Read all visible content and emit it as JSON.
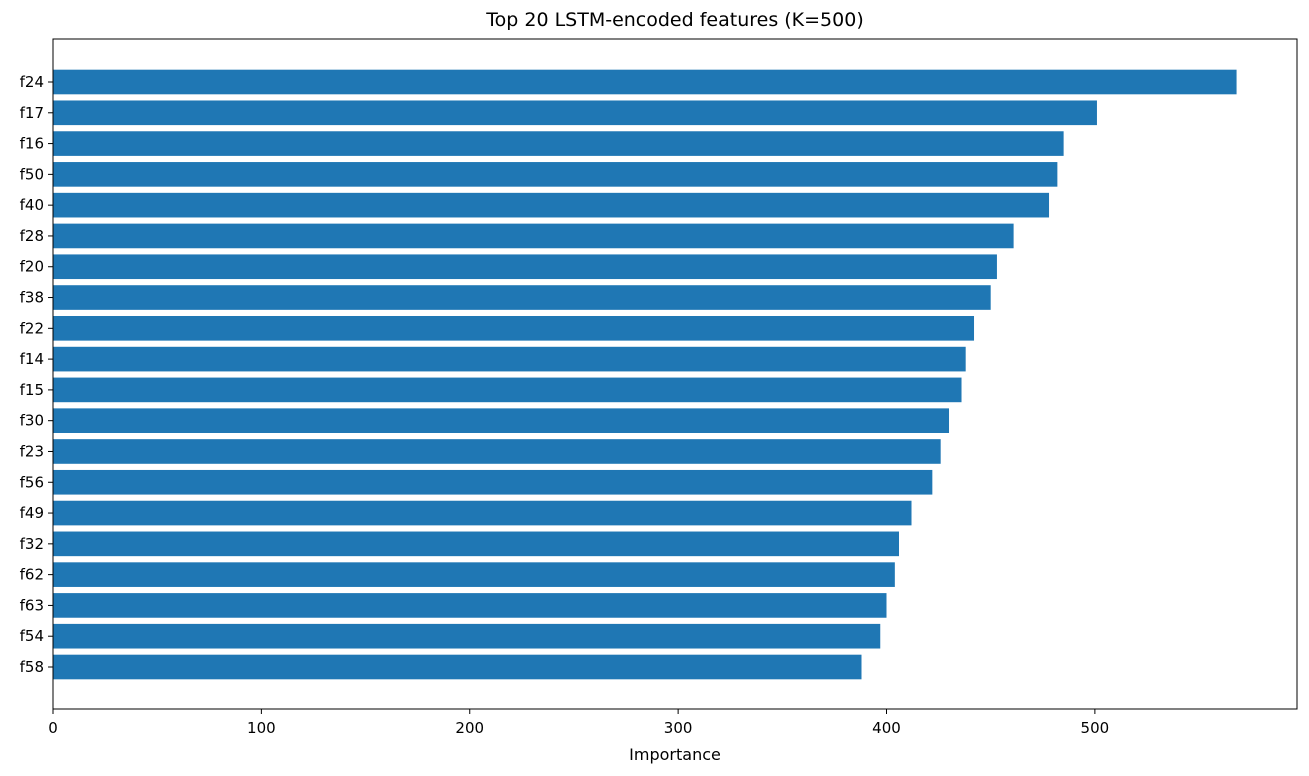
{
  "chart_data": {
    "type": "bar",
    "orientation": "horizontal",
    "title": "Top 20 LSTM-encoded features (K=500)",
    "xlabel": "Importance",
    "ylabel": "",
    "categories": [
      "f24",
      "f17",
      "f16",
      "f50",
      "f40",
      "f28",
      "f20",
      "f38",
      "f22",
      "f14",
      "f15",
      "f30",
      "f23",
      "f56",
      "f49",
      "f32",
      "f62",
      "f63",
      "f54",
      "f58"
    ],
    "values": [
      568,
      501,
      485,
      482,
      478,
      461,
      453,
      450,
      442,
      438,
      436,
      430,
      426,
      422,
      412,
      406,
      404,
      400,
      397,
      388
    ],
    "xlim": [
      0,
      597
    ],
    "xticks": [
      0,
      100,
      200,
      300,
      400,
      500
    ],
    "bar_color": "#1f77b4",
    "grid": false,
    "legend": "none"
  }
}
